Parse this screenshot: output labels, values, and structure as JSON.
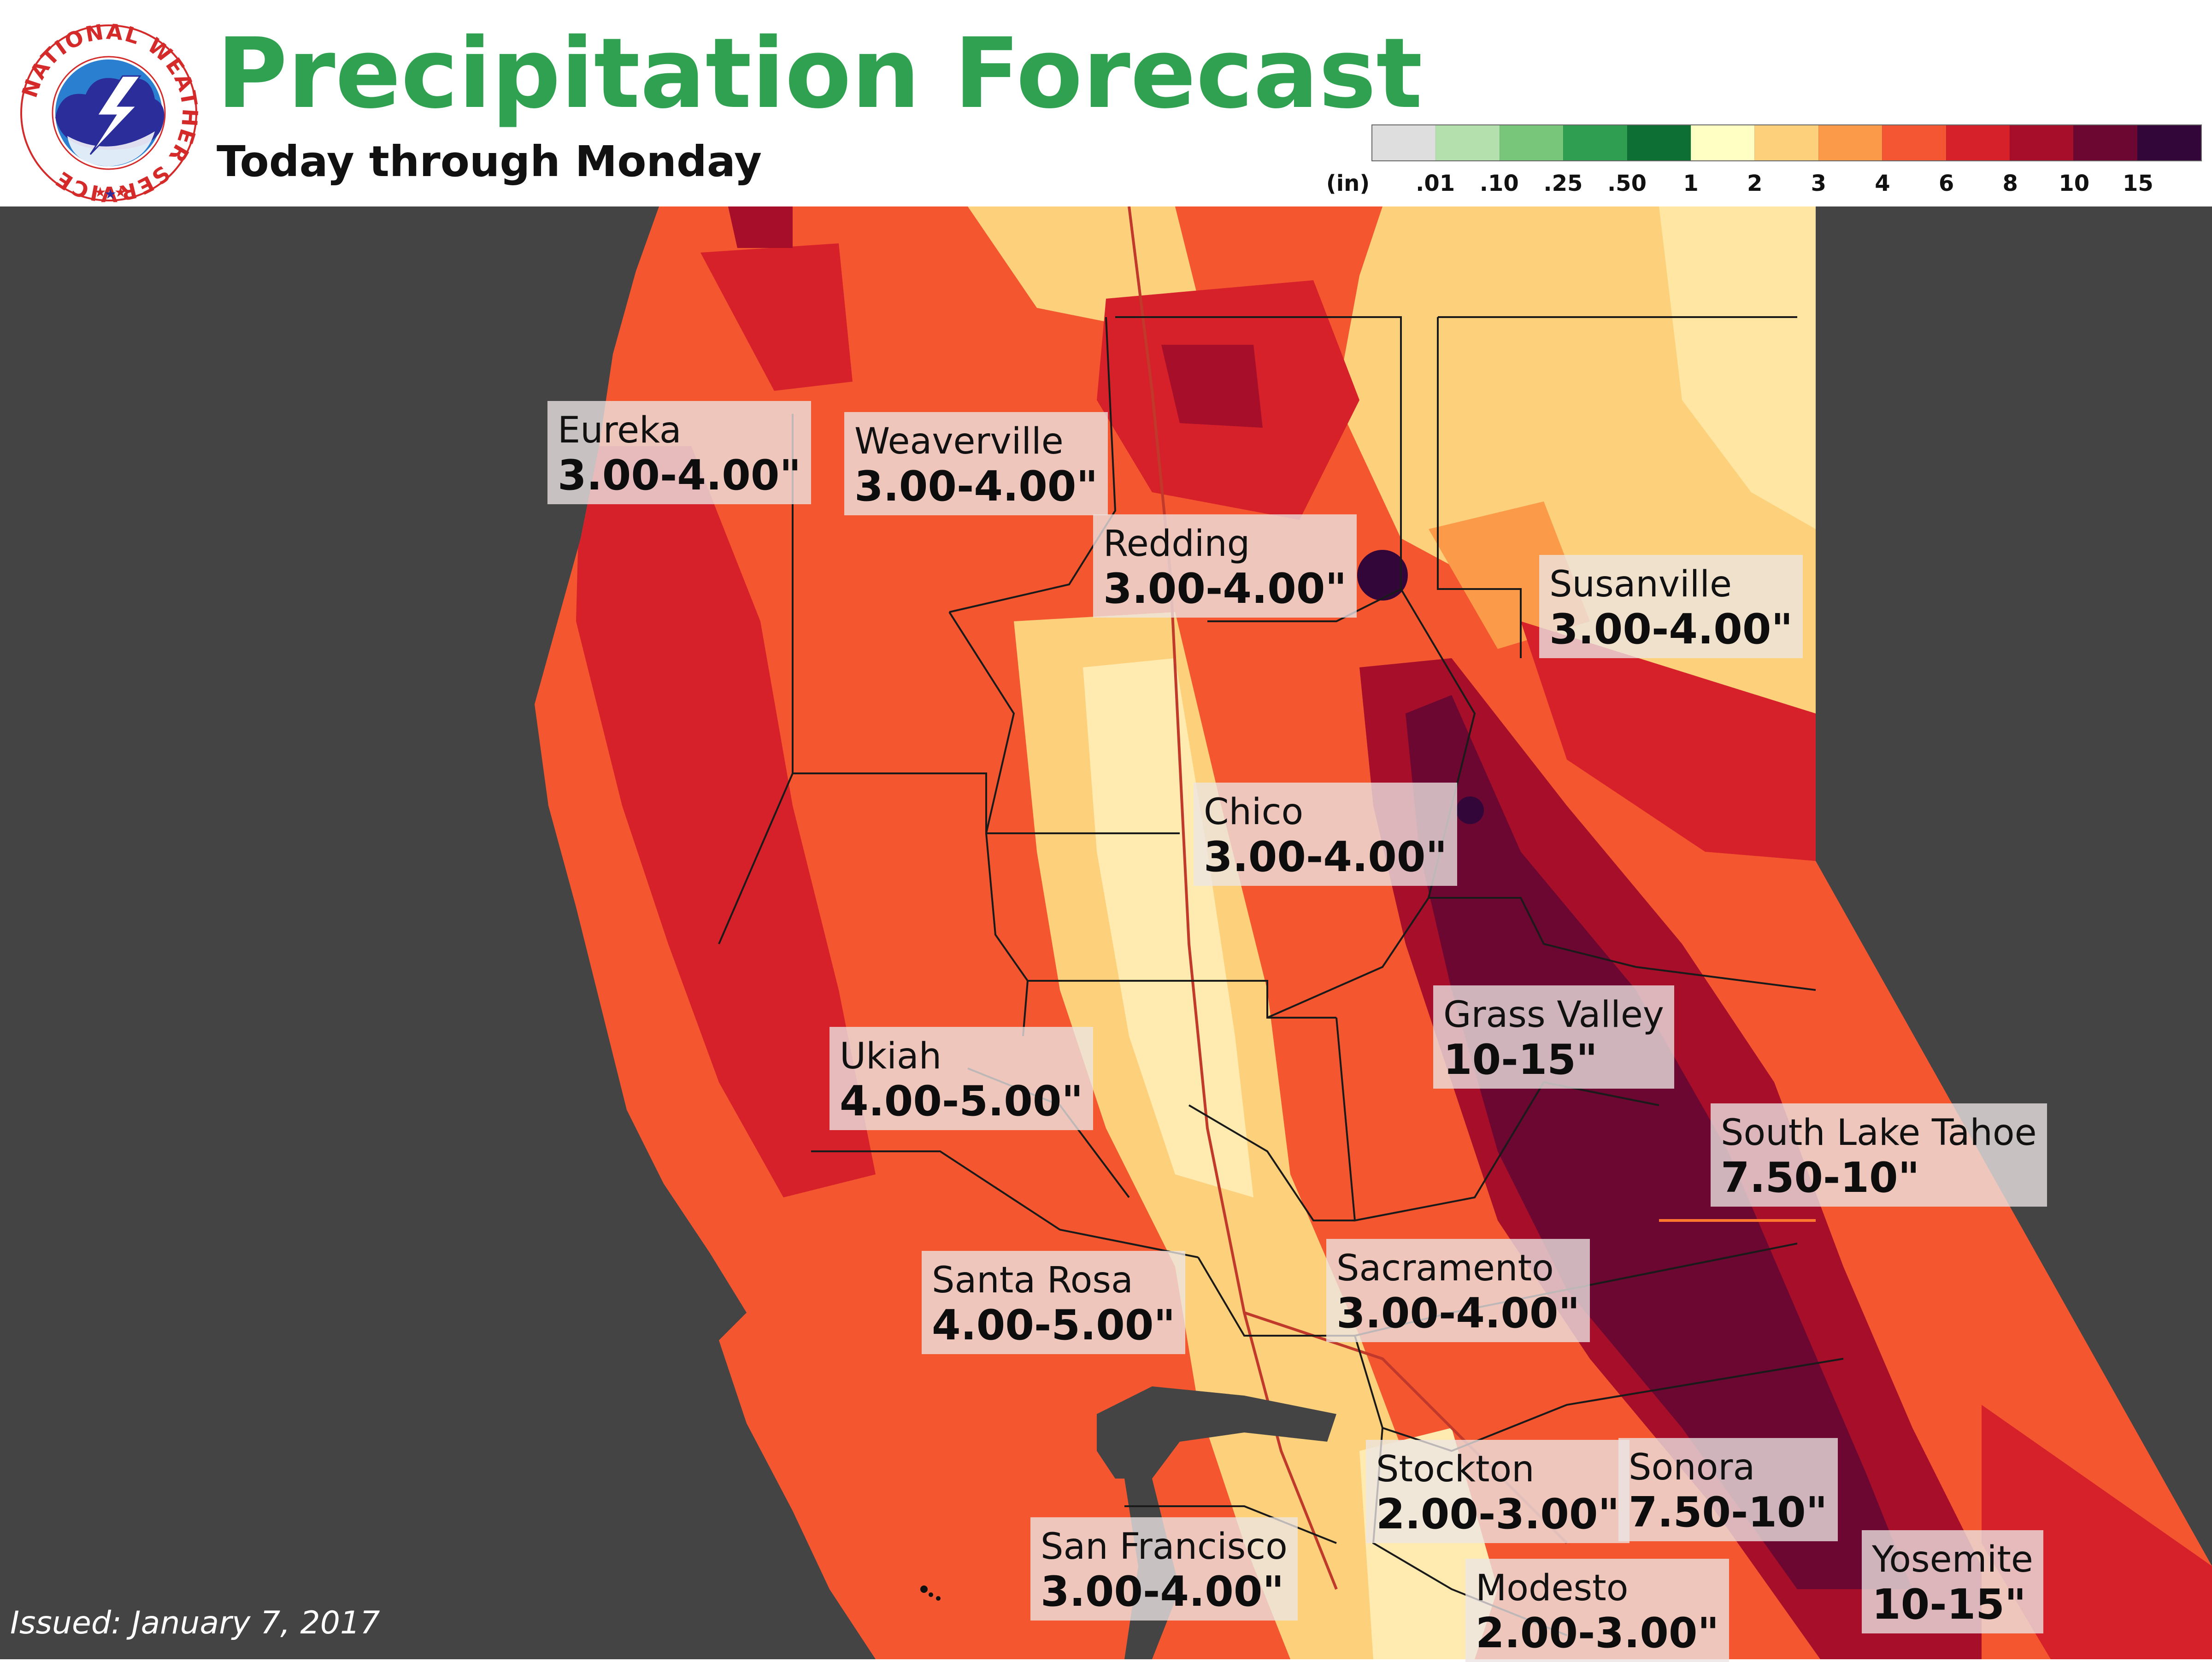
{
  "header": {
    "title": "Precipitation Forecast",
    "subtitle": "Today through Monday",
    "logo_text": "NATIONAL WEATHER SERVICE"
  },
  "legend": {
    "unit_label": "(in)",
    "swatches": [
      {
        "color": "#dedede"
      },
      {
        "color": "#b4e0ad"
      },
      {
        "color": "#78c67a"
      },
      {
        "color": "#2f9e50"
      },
      {
        "color": "#0d6f33"
      },
      {
        "color": "#ffffc3"
      },
      {
        "color": "#fdd07b"
      },
      {
        "color": "#fb9a48"
      },
      {
        "color": "#f45634"
      },
      {
        "color": "#d7212a"
      },
      {
        "color": "#a60e2a"
      },
      {
        "color": "#6b0730"
      },
      {
        "color": "#33063a"
      }
    ],
    "ticks": [
      ".01",
      ".10",
      ".25",
      ".50",
      "1",
      "2",
      "3",
      "4",
      "6",
      "8",
      "10",
      "15"
    ]
  },
  "cities": [
    {
      "name": "Eureka",
      "amount": "3.00-4.00\""
    },
    {
      "name": "Weaverville",
      "amount": "3.00-4.00\""
    },
    {
      "name": "Redding",
      "amount": "3.00-4.00\""
    },
    {
      "name": "Susanville",
      "amount": "3.00-4.00\""
    },
    {
      "name": "Chico",
      "amount": "3.00-4.00\""
    },
    {
      "name": "Grass Valley",
      "amount": "10-15\""
    },
    {
      "name": "Ukiah",
      "amount": "4.00-5.00\""
    },
    {
      "name": "South Lake Tahoe",
      "amount": "7.50-10\""
    },
    {
      "name": "Santa Rosa",
      "amount": "4.00-5.00\""
    },
    {
      "name": "Sacramento",
      "amount": "3.00-4.00\""
    },
    {
      "name": "Stockton",
      "amount": "2.00-3.00\""
    },
    {
      "name": "Sonora",
      "amount": "7.50-10\""
    },
    {
      "name": "San Francisco",
      "amount": "3.00-4.00\""
    },
    {
      "name": "Yosemite",
      "amount": "10-15\""
    },
    {
      "name": "Modesto",
      "amount": "2.00-3.00\""
    }
  ],
  "footer": {
    "issued": "Issued: January 7, 2017"
  }
}
